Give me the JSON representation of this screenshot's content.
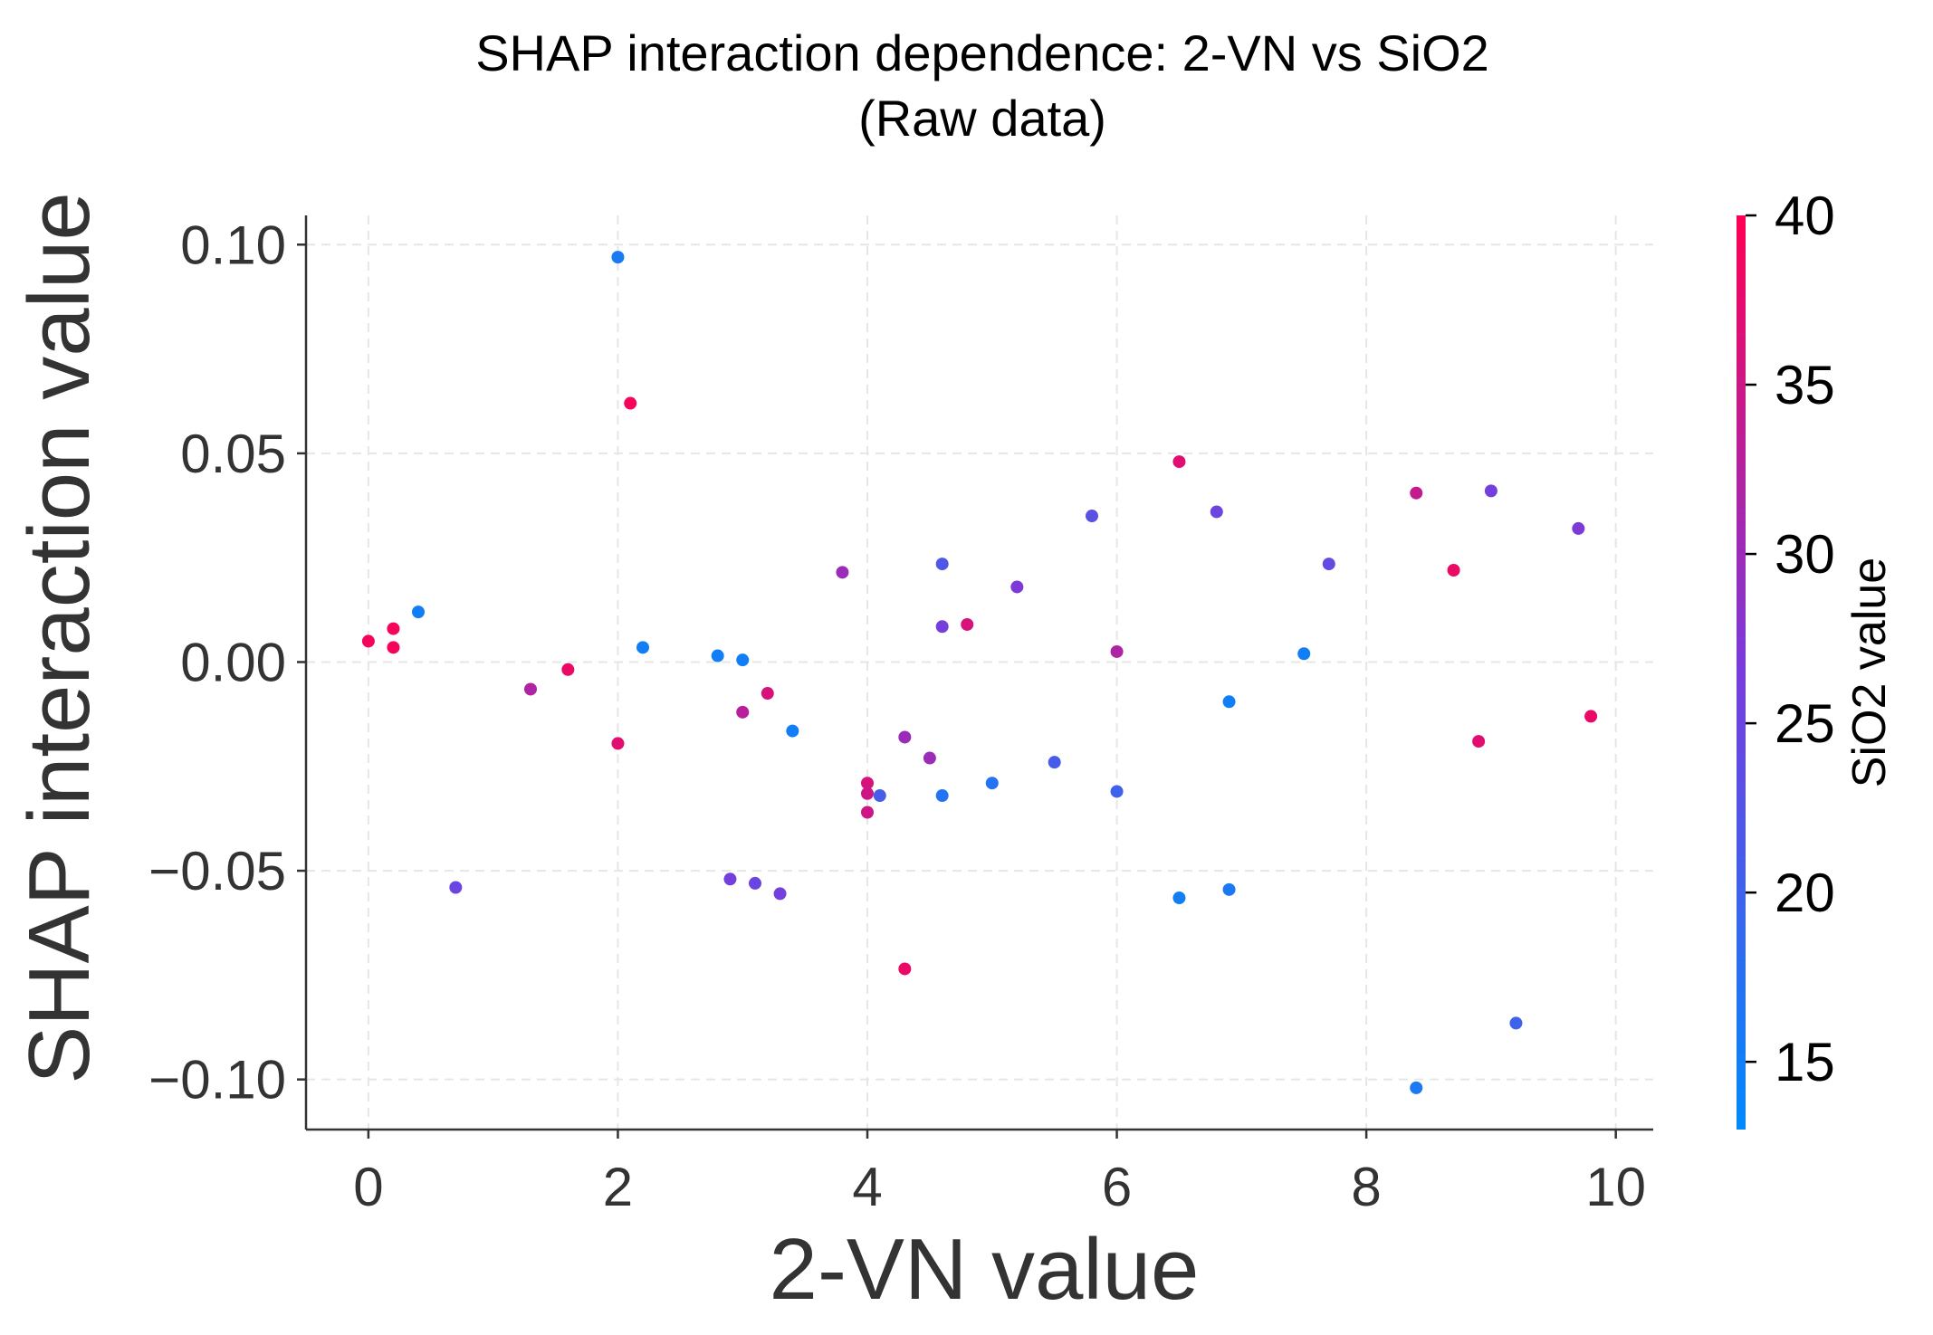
{
  "chart_data": {
    "type": "scatter",
    "title": "SHAP interaction dependence: 2-VN vs SiO2",
    "subtitle": "(Raw data)",
    "xlabel": "2-VN value",
    "ylabel": "SHAP interaction value",
    "xlim": [
      -0.5,
      10.3
    ],
    "ylim": [
      -0.112,
      0.107
    ],
    "x_ticks": [
      0,
      2,
      4,
      6,
      8,
      10
    ],
    "x_tick_labels": [
      "0",
      "2",
      "4",
      "6",
      "8",
      "10"
    ],
    "y_ticks": [
      0.1,
      0.05,
      0.0,
      -0.05,
      -0.1
    ],
    "y_tick_labels": [
      "0.10",
      "0.05",
      "0.00",
      "−0.05",
      "−0.10"
    ],
    "grid": true,
    "colorbar": {
      "label": "SiO2 value",
      "range": [
        13,
        40
      ],
      "ticks": [
        15,
        20,
        25,
        30,
        35,
        40
      ],
      "tick_labels": [
        "15",
        "20",
        "25",
        "30",
        "35",
        "40"
      ],
      "color_low": "#008afb",
      "color_high": "#ff0052"
    },
    "points": [
      {
        "x": 0.0,
        "y": 0.005,
        "c": 39
      },
      {
        "x": 0.2,
        "y": 0.008,
        "c": 39
      },
      {
        "x": 0.2,
        "y": 0.0035,
        "c": 39
      },
      {
        "x": 0.4,
        "y": 0.012,
        "c": 15
      },
      {
        "x": 0.7,
        "y": -0.054,
        "c": 25
      },
      {
        "x": 1.3,
        "y": -0.0065,
        "c": 32
      },
      {
        "x": 1.6,
        "y": -0.0018,
        "c": 38
      },
      {
        "x": 2.0,
        "y": 0.097,
        "c": 16
      },
      {
        "x": 2.0,
        "y": -0.0195,
        "c": 37
      },
      {
        "x": 2.1,
        "y": 0.062,
        "c": 39
      },
      {
        "x": 2.2,
        "y": 0.0035,
        "c": 15
      },
      {
        "x": 2.8,
        "y": 0.0015,
        "c": 15
      },
      {
        "x": 2.9,
        "y": -0.052,
        "c": 26
      },
      {
        "x": 3.0,
        "y": 0.0005,
        "c": 15
      },
      {
        "x": 3.0,
        "y": -0.012,
        "c": 33
      },
      {
        "x": 3.1,
        "y": -0.053,
        "c": 25
      },
      {
        "x": 3.2,
        "y": -0.0075,
        "c": 36
      },
      {
        "x": 3.3,
        "y": -0.0555,
        "c": 26
      },
      {
        "x": 3.4,
        "y": -0.0165,
        "c": 15
      },
      {
        "x": 3.8,
        "y": 0.0215,
        "c": 30
      },
      {
        "x": 4.0,
        "y": -0.029,
        "c": 36
      },
      {
        "x": 4.0,
        "y": -0.0315,
        "c": 35
      },
      {
        "x": 4.0,
        "y": -0.036,
        "c": 35
      },
      {
        "x": 4.1,
        "y": -0.032,
        "c": 21
      },
      {
        "x": 4.3,
        "y": -0.018,
        "c": 30
      },
      {
        "x": 4.3,
        "y": -0.0735,
        "c": 38
      },
      {
        "x": 4.5,
        "y": -0.023,
        "c": 30
      },
      {
        "x": 4.6,
        "y": 0.0235,
        "c": 22
      },
      {
        "x": 4.6,
        "y": 0.0085,
        "c": 26
      },
      {
        "x": 4.6,
        "y": -0.032,
        "c": 17
      },
      {
        "x": 4.8,
        "y": 0.009,
        "c": 36
      },
      {
        "x": 5.0,
        "y": -0.029,
        "c": 17
      },
      {
        "x": 5.2,
        "y": 0.018,
        "c": 27
      },
      {
        "x": 5.5,
        "y": -0.024,
        "c": 21
      },
      {
        "x": 5.8,
        "y": 0.035,
        "c": 23
      },
      {
        "x": 6.0,
        "y": 0.0025,
        "c": 32
      },
      {
        "x": 6.0,
        "y": -0.031,
        "c": 20
      },
      {
        "x": 6.5,
        "y": 0.048,
        "c": 37
      },
      {
        "x": 6.5,
        "y": -0.0565,
        "c": 15
      },
      {
        "x": 6.8,
        "y": 0.036,
        "c": 25
      },
      {
        "x": 6.9,
        "y": -0.0095,
        "c": 15
      },
      {
        "x": 6.9,
        "y": -0.0545,
        "c": 16
      },
      {
        "x": 7.5,
        "y": 0.002,
        "c": 15
      },
      {
        "x": 7.7,
        "y": 0.0235,
        "c": 24
      },
      {
        "x": 8.4,
        "y": 0.0405,
        "c": 34
      },
      {
        "x": 8.4,
        "y": -0.102,
        "c": 16
      },
      {
        "x": 8.7,
        "y": 0.022,
        "c": 38
      },
      {
        "x": 8.9,
        "y": -0.019,
        "c": 37
      },
      {
        "x": 9.0,
        "y": 0.041,
        "c": 26
      },
      {
        "x": 9.2,
        "y": -0.0865,
        "c": 20
      },
      {
        "x": 9.7,
        "y": 0.032,
        "c": 27
      },
      {
        "x": 9.8,
        "y": -0.013,
        "c": 38
      }
    ]
  }
}
